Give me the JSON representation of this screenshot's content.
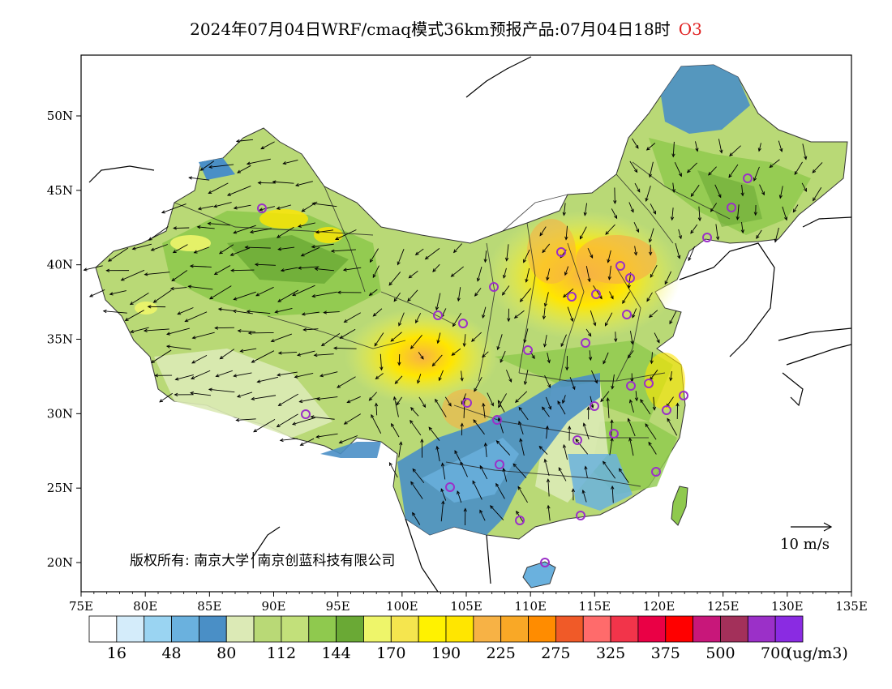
{
  "title": {
    "main": "2024年07月04日WRF/cmaq模式36km预报产品:07月04日18时",
    "species": "O3"
  },
  "axes": {
    "x_ticks": [
      "75E",
      "80E",
      "85E",
      "90E",
      "95E",
      "100E",
      "105E",
      "110E",
      "115E",
      "120E",
      "125E",
      "130E",
      "135E"
    ],
    "y_ticks": [
      "20N",
      "25N",
      "30N",
      "35N",
      "40N",
      "45N",
      "50N"
    ]
  },
  "copyright": "版权所有: 南京大学│南京创蓝科技有限公司",
  "wind_scale_label": "10 m/s",
  "colorbar": {
    "colors": [
      "#ffffff",
      "#d4ecfa",
      "#9ad4f2",
      "#6ab1de",
      "#4a8fc6",
      "#dceab6",
      "#b9d976",
      "#c2e07a",
      "#8fc94e",
      "#6aa935",
      "#eef56a",
      "#f5e54e",
      "#fff200",
      "#ffe600",
      "#f7b245",
      "#f9a826",
      "#ff8c00",
      "#f05a28",
      "#ff6b6b",
      "#f2344a",
      "#ea0045",
      "#ff0000",
      "#c8177a",
      "#a3305a",
      "#9b30c8",
      "#8a2be2"
    ],
    "labels": [
      "16",
      "48",
      "80",
      "112",
      "144",
      "170",
      "190",
      "225",
      "275",
      "325",
      "375",
      "500",
      "700"
    ],
    "unit": "(ug/m3)"
  }
}
